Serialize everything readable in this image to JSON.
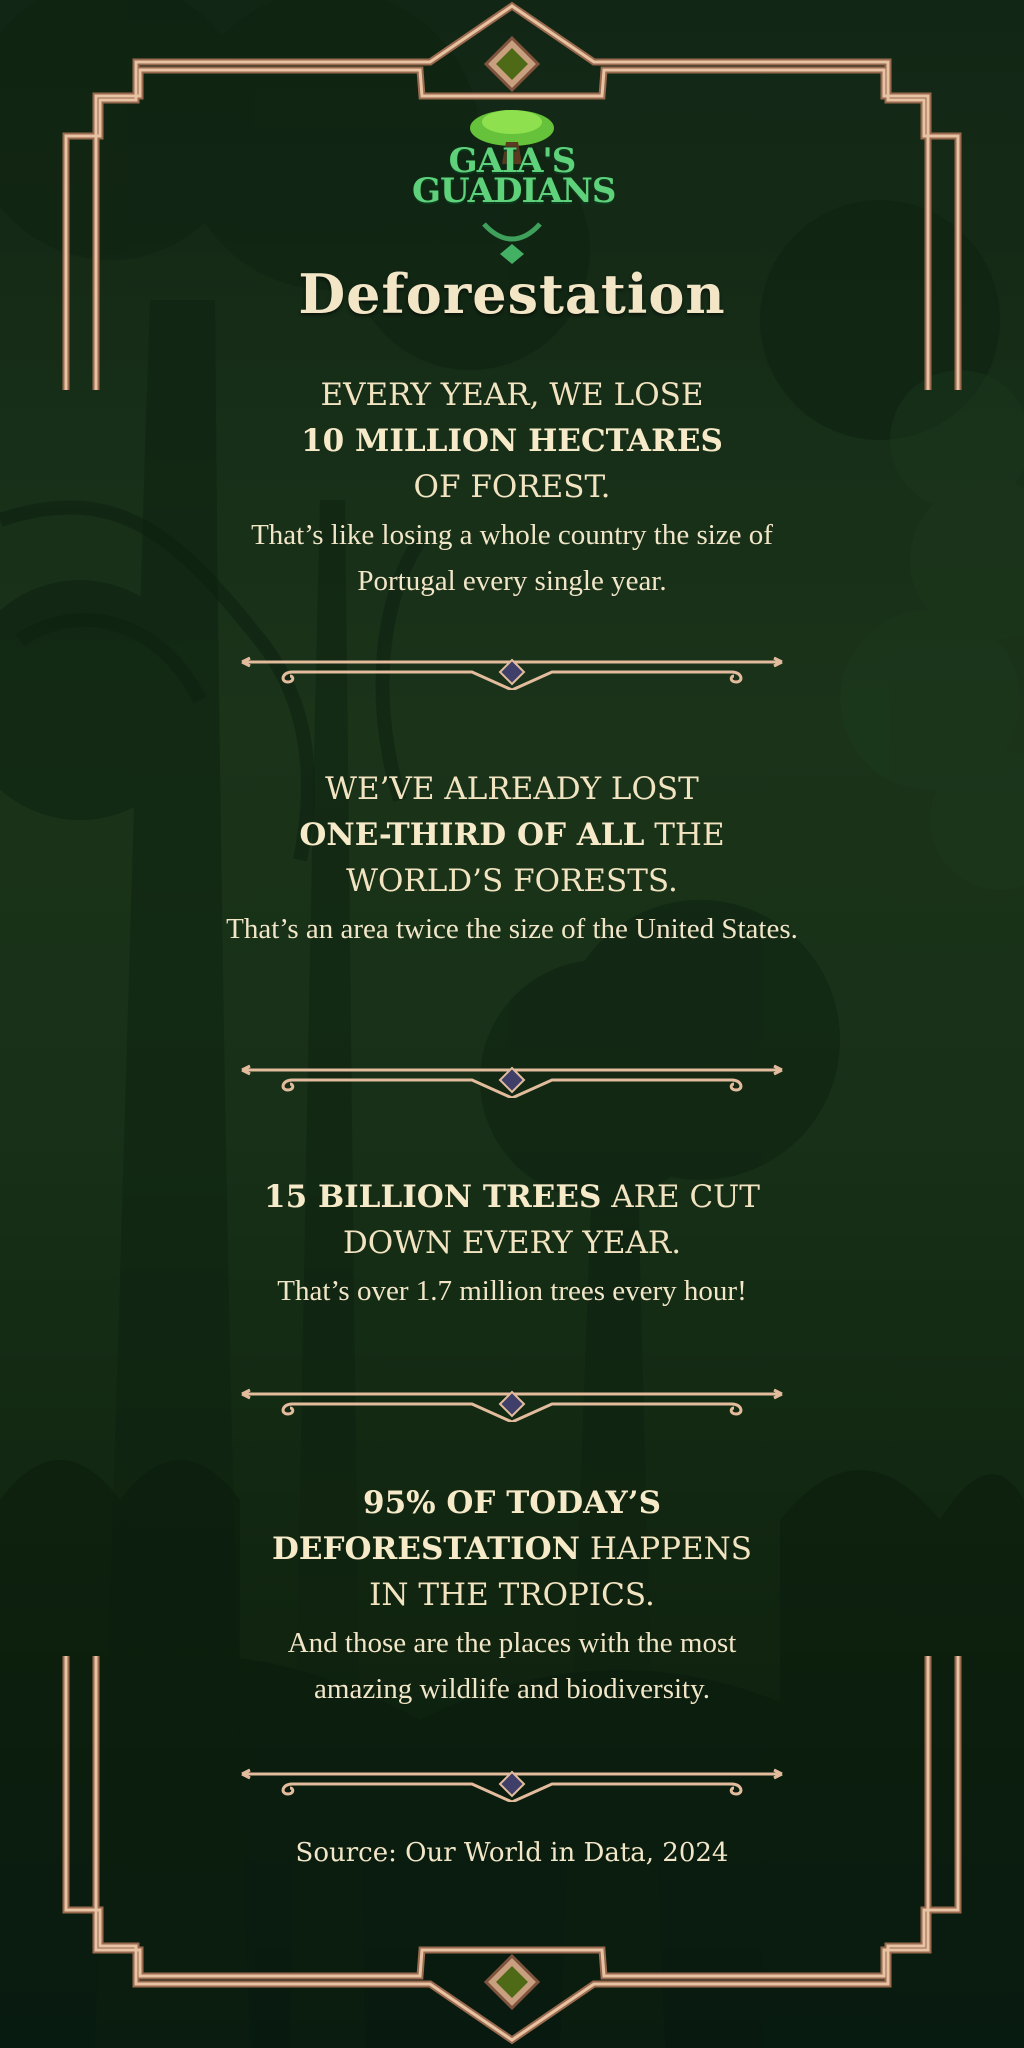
{
  "brand": {
    "logo_line1": "GAIA'S",
    "logo_line2": "GUADIANS"
  },
  "title": "Deforestation",
  "facts": [
    {
      "pre": "EVERY YEAR, WE LOSE",
      "bold": "10 MILLION HECTARES",
      "post": "OF FOREST.",
      "detail": "That’s like losing a whole country the size of  Portugal every single year."
    },
    {
      "pre": "WE’VE ALREADY LOST",
      "bold": "ONE-THIRD OF ALL",
      "post": " THE WORLD’S FORESTS.",
      "detail": "That’s an area twice the size of  the United States."
    },
    {
      "pre": "",
      "bold": "15 BILLION TREES",
      "post": " ARE CUT DOWN EVERY YEAR.",
      "detail": "That’s over 1.7 million trees every hour!"
    },
    {
      "pre": "",
      "bold": "95% OF TODAY’S DEFORESTATION",
      "post": " HAPPENS IN THE TROPICS.",
      "detail": "And those are the places with the most amazing wildlife and biodiversity."
    }
  ],
  "source": "Source: Our World in Data, 2024",
  "colors": {
    "gold": "#d9ad8a",
    "gold_dark": "#9e6f52",
    "jewel": "#4e6a16",
    "cream": "#f3e7c9"
  }
}
